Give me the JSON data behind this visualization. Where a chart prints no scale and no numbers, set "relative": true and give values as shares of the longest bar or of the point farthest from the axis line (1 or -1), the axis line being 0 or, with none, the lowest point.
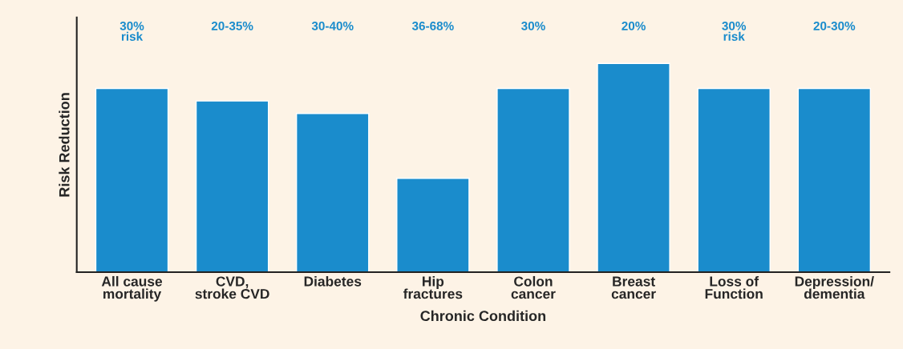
{
  "chart_data": {
    "type": "bar",
    "relative": true,
    "xlabel": "Chronic Condition",
    "ylabel": "Risk Reduction",
    "categories": [
      "All cause\nmortality",
      "CVD,\nstroke CVD",
      "Diabetes",
      "Hip\nfractures",
      "Colon\ncancer",
      "Breast\ncancer",
      "Loss of\nFunction",
      "Depression/\ndementia"
    ],
    "values": [
      0.88,
      0.82,
      0.76,
      0.45,
      0.88,
      1,
      0.88,
      0.88
    ],
    "annotations": [
      "30%\nrisk",
      "20-35%",
      "30-40%",
      "36-68%",
      "30%",
      "20%",
      "30%\nrisk",
      "20-30%"
    ],
    "color": "#1a8ccc",
    "grid": false,
    "legend": false
  }
}
